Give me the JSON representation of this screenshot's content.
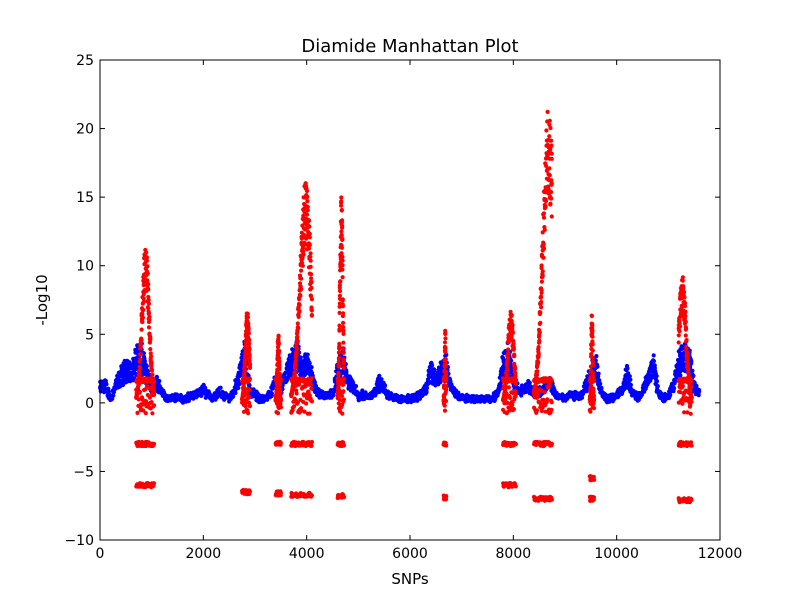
{
  "chart_data": {
    "type": "scatter",
    "title": "Diamide Manhattan Plot",
    "xlabel": "SNPs",
    "ylabel": "-Log10",
    "xlim": [
      0,
      12000
    ],
    "ylim": [
      -10,
      25
    ],
    "xticks": [
      0,
      2000,
      4000,
      6000,
      8000,
      10000,
      12000
    ],
    "yticks": [
      -10,
      -5,
      0,
      5,
      10,
      15,
      20,
      25
    ],
    "grid": false,
    "legend": "none",
    "colors": {
      "baseline": "#0000ff",
      "significant": "#ff0000"
    },
    "baseline_trace": [
      [
        0,
        1.4
      ],
      [
        100,
        1.6
      ],
      [
        200,
        0.4
      ],
      [
        300,
        1.5
      ],
      [
        400,
        2.4
      ],
      [
        500,
        3.0
      ],
      [
        600,
        2.6
      ],
      [
        700,
        3.8
      ],
      [
        800,
        4.2
      ],
      [
        900,
        2.8
      ],
      [
        1000,
        1.2
      ],
      [
        1100,
        1.8
      ],
      [
        1200,
        1.0
      ],
      [
        1300,
        0.3
      ],
      [
        1400,
        0.4
      ],
      [
        1500,
        0.6
      ],
      [
        1600,
        0.3
      ],
      [
        1700,
        0.5
      ],
      [
        1800,
        0.7
      ],
      [
        1900,
        0.8
      ],
      [
        2000,
        1.2
      ],
      [
        2100,
        0.8
      ],
      [
        2200,
        0.4
      ],
      [
        2300,
        1.0
      ],
      [
        2400,
        0.7
      ],
      [
        2500,
        0.4
      ],
      [
        2600,
        1.2
      ],
      [
        2700,
        2.5
      ],
      [
        2800,
        4.5
      ],
      [
        2900,
        1.0
      ],
      [
        3000,
        0.8
      ],
      [
        3100,
        0.3
      ],
      [
        3200,
        0.4
      ],
      [
        3300,
        0.9
      ],
      [
        3400,
        2.0
      ],
      [
        3500,
        1.2
      ],
      [
        3600,
        2.5
      ],
      [
        3700,
        3.5
      ],
      [
        3800,
        4.3
      ],
      [
        3900,
        3.0
      ],
      [
        4000,
        3.6
      ],
      [
        4100,
        2.3
      ],
      [
        4200,
        1.0
      ],
      [
        4300,
        0.8
      ],
      [
        4400,
        0.6
      ],
      [
        4500,
        0.8
      ],
      [
        4600,
        3.0
      ],
      [
        4700,
        3.8
      ],
      [
        4800,
        1.8
      ],
      [
        4900,
        1.5
      ],
      [
        5000,
        0.6
      ],
      [
        5100,
        0.8
      ],
      [
        5200,
        0.5
      ],
      [
        5300,
        1.0
      ],
      [
        5400,
        1.8
      ],
      [
        5500,
        1.3
      ],
      [
        5600,
        0.5
      ],
      [
        5700,
        0.6
      ],
      [
        5800,
        0.3
      ],
      [
        5900,
        0.3
      ],
      [
        6000,
        0.4
      ],
      [
        6100,
        0.5
      ],
      [
        6200,
        0.8
      ],
      [
        6300,
        1.2
      ],
      [
        6400,
        3.0
      ],
      [
        6500,
        2.0
      ],
      [
        6600,
        2.9
      ],
      [
        6700,
        3.2
      ],
      [
        6800,
        1.2
      ],
      [
        6900,
        0.8
      ],
      [
        7000,
        0.5
      ],
      [
        7100,
        0.4
      ],
      [
        7200,
        0.4
      ],
      [
        7300,
        0.3
      ],
      [
        7400,
        0.4
      ],
      [
        7500,
        0.3
      ],
      [
        7600,
        0.5
      ],
      [
        7700,
        0.8
      ],
      [
        7800,
        3.5
      ],
      [
        7900,
        4.2
      ],
      [
        8000,
        2.0
      ],
      [
        8100,
        1.0
      ],
      [
        8200,
        1.2
      ],
      [
        8300,
        1.5
      ],
      [
        8400,
        0.8
      ],
      [
        8500,
        1.0
      ],
      [
        8600,
        1.5
      ],
      [
        8700,
        1.8
      ],
      [
        8800,
        0.8
      ],
      [
        8900,
        0.5
      ],
      [
        9000,
        0.5
      ],
      [
        9100,
        0.8
      ],
      [
        9200,
        0.6
      ],
      [
        9300,
        0.5
      ],
      [
        9400,
        1.5
      ],
      [
        9500,
        2.8
      ],
      [
        9600,
        3.2
      ],
      [
        9700,
        1.0
      ],
      [
        9800,
        0.4
      ],
      [
        9900,
        0.5
      ],
      [
        10000,
        0.6
      ],
      [
        10100,
        1.2
      ],
      [
        10200,
        2.5
      ],
      [
        10300,
        1.0
      ],
      [
        10400,
        0.5
      ],
      [
        10500,
        1.0
      ],
      [
        10600,
        2.2
      ],
      [
        10700,
        3.5
      ],
      [
        10800,
        1.0
      ],
      [
        10900,
        0.4
      ],
      [
        11000,
        0.6
      ],
      [
        11100,
        1.5
      ],
      [
        11200,
        3.5
      ],
      [
        11300,
        4.2
      ],
      [
        11400,
        3.8
      ],
      [
        11500,
        1.5
      ],
      [
        11600,
        0.8
      ]
    ],
    "peaks": [
      {
        "center": 880,
        "x_range": [
          700,
          1050
        ],
        "max_y": 11.5,
        "lower_bands": [
          -3,
          -6
        ]
      },
      {
        "center": 2850,
        "x_range": [
          2750,
          2900
        ],
        "max_y": 6.8,
        "lower_bands": [
          -6.5
        ]
      },
      {
        "center": 3450,
        "x_range": [
          3400,
          3500
        ],
        "max_y": 5.2,
        "lower_bands": [
          -3,
          -6.6
        ]
      },
      {
        "center": 3980,
        "x_range": [
          3700,
          4100
        ],
        "max_y": 16.2,
        "lower_bands": [
          -3,
          -6.7
        ]
      },
      {
        "center": 4670,
        "x_range": [
          4600,
          4720
        ],
        "max_y": 15.8,
        "lower_bands": [
          -3,
          -6.8
        ]
      },
      {
        "center": 6680,
        "x_range": [
          6650,
          6700
        ],
        "max_y": 5.3,
        "lower_bands": [
          -3,
          -6.9
        ]
      },
      {
        "center": 7950,
        "x_range": [
          7800,
          8050
        ],
        "max_y": 6.8,
        "lower_bands": [
          -3,
          -6
        ]
      },
      {
        "center": 8680,
        "x_range": [
          8400,
          8750
        ],
        "max_y": 21.5,
        "lower_bands": [
          -3,
          -7
        ]
      },
      {
        "center": 9520,
        "x_range": [
          9480,
          9560
        ],
        "max_y": 6.7,
        "lower_bands": [
          -5.5,
          -7
        ]
      },
      {
        "center": 11270,
        "x_range": [
          11200,
          11450
        ],
        "max_y": 9.4,
        "lower_bands": [
          -3,
          -7.1
        ]
      }
    ]
  }
}
